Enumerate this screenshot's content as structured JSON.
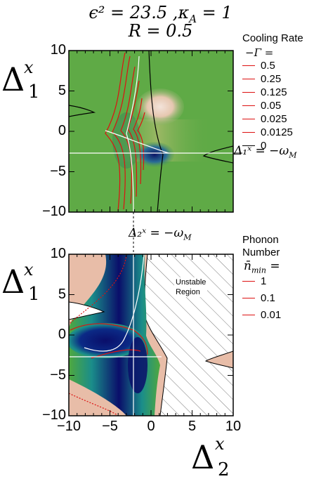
{
  "title": {
    "line1": "ϵ² = 23.5 ,κ",
    "line1_sub": "A",
    "line1_tail": " = 1",
    "line2": "R = 0.5"
  },
  "axis": {
    "y_symbol": "Δ",
    "y_sup": "x",
    "y_sub": "1",
    "x_symbol": "Δ",
    "x_sup": "x",
    "x_sub": "2"
  },
  "top_panel": {
    "legend_title_1": "Cooling Rate",
    "legend_title_2": "−Γ =",
    "legend": [
      {
        "label": "0.5",
        "color": "#dd1111"
      },
      {
        "label": "0.25",
        "color": "#dd1111"
      },
      {
        "label": "0.125",
        "color": "#dd1111"
      },
      {
        "label": "0.05",
        "color": "#dd1111"
      },
      {
        "label": "0.025",
        "color": "#dd1111"
      },
      {
        "label": "0.0125",
        "color": "#dd1111"
      },
      {
        "label": "0",
        "color": "#000000"
      }
    ],
    "annotation": "Δ₁ˣ = −ω",
    "annotation_sub": "M"
  },
  "bottom_panel": {
    "legend_title_1": "Phonon",
    "legend_title_2": "Number",
    "legend_title_3": "n̄",
    "legend_title_3_sub": "min",
    "legend_title_3_tail": " =",
    "legend": [
      {
        "label": "1",
        "color": "#dd1111"
      },
      {
        "label": "0.1",
        "color": "#dd1111"
      },
      {
        "label": "0.01",
        "color": "#dd1111"
      }
    ],
    "unstable_label_1": "Unstable",
    "unstable_label_2": "Region",
    "annotation": "Δ₂ˣ = −ω",
    "annotation_sub": "M"
  },
  "chart_data": [
    {
      "type": "heatmap",
      "panel": "top",
      "xlim": [
        -10,
        10
      ],
      "ylim": [
        -10,
        10
      ],
      "x_ticks": [
        -10,
        -5,
        0,
        5,
        10
      ],
      "y_ticks": [
        10,
        5,
        0,
        -5,
        -10
      ],
      "x_tick_labels": [],
      "y_tick_labels": [
        "10",
        "5",
        "0",
        "−5",
        "−10"
      ],
      "colorscale": {
        "background": "#5faa46",
        "positive": "#e6c7b0",
        "negative": "#0b1466"
      },
      "contour_levels": [
        0.5,
        0.25,
        0.125,
        0.05,
        0.025,
        0.0125,
        0
      ],
      "reference_lines": {
        "horizontal_y": -2.5,
        "vertical_x": -2.5
      }
    },
    {
      "type": "heatmap",
      "panel": "bottom",
      "xlim": [
        -10,
        10
      ],
      "ylim": [
        -10,
        10
      ],
      "x_ticks": [
        -10,
        -5,
        0,
        5,
        10
      ],
      "y_ticks": [
        10,
        5,
        0,
        -5,
        -10
      ],
      "x_tick_labels": [
        "−10",
        "−5",
        "0",
        "5",
        "10"
      ],
      "y_tick_labels": [
        "10",
        "5",
        "0",
        "−5",
        "−10"
      ],
      "colorscale": {
        "background": "#e8bda8",
        "low": "#0a0e6a",
        "mid": "#1a8d8a",
        "high": "#4fa83e"
      },
      "contour_levels": [
        1,
        0.1,
        0.01
      ],
      "reference_lines": {
        "horizontal_y": -2.5,
        "vertical_x": -2.5
      }
    }
  ]
}
